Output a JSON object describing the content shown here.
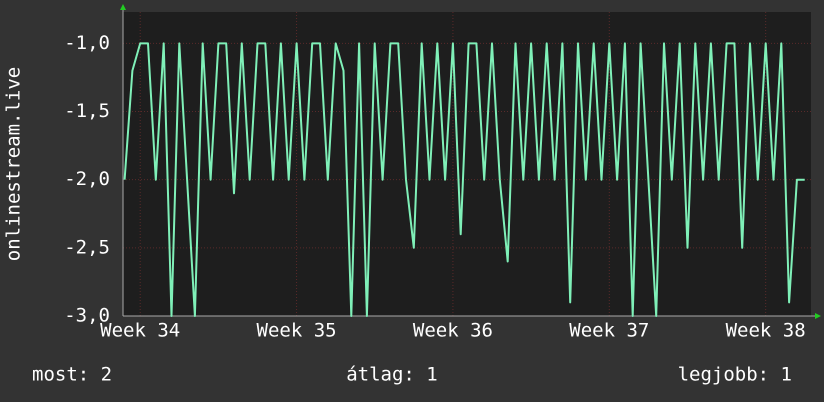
{
  "chart_data": {
    "type": "line",
    "ylabel": "onlinestream.live",
    "x": [
      33.9,
      33.95,
      34,
      34.05,
      34.1,
      34.15,
      34.2,
      34.25,
      34.3,
      34.35,
      34.4,
      34.45,
      34.5,
      34.55,
      34.6,
      34.65,
      34.7,
      34.75,
      34.8,
      34.85,
      34.9,
      34.95,
      35,
      35.05,
      35.1,
      35.15,
      35.2,
      35.25,
      35.3,
      35.35,
      35.4,
      35.45,
      35.5,
      35.55,
      35.6,
      35.65,
      35.7,
      35.75,
      35.8,
      35.85,
      35.9,
      35.95,
      36,
      36.05,
      36.1,
      36.15,
      36.2,
      36.25,
      36.3,
      36.35,
      36.4,
      36.45,
      36.5,
      36.55,
      36.6,
      36.65,
      36.7,
      36.75,
      36.8,
      36.85,
      36.9,
      36.95,
      37,
      37.05,
      37.1,
      37.15,
      37.2,
      37.25,
      37.3,
      37.35,
      37.4,
      37.45,
      37.5,
      37.55,
      37.6,
      37.65,
      37.7,
      37.75,
      37.8,
      37.85,
      37.9,
      37.95,
      38,
      38.05,
      38.1,
      38.15,
      38.2,
      38.25
    ],
    "series": [
      {
        "color": "#7ff0b8",
        "values": [
          -2.0,
          -1.2,
          -1.0,
          -1.0,
          -2.0,
          -1.0,
          -3.0,
          -1.0,
          -2.0,
          -3.0,
          -1.0,
          -2.0,
          -1.0,
          -1.0,
          -2.1,
          -1.0,
          -2.0,
          -1.0,
          -1.0,
          -2.0,
          -1.0,
          -2.0,
          -1.0,
          -2.0,
          -1.0,
          -1.0,
          -2.0,
          -1.0,
          -1.2,
          -3.0,
          -1.0,
          -3.0,
          -1.0,
          -2.0,
          -1.0,
          -1.0,
          -2.0,
          -2.5,
          -1.0,
          -2.0,
          -1.0,
          -2.0,
          -1.0,
          -2.4,
          -1.0,
          -1.0,
          -2.0,
          -1.0,
          -2.0,
          -2.6,
          -1.0,
          -2.0,
          -1.0,
          -2.0,
          -1.0,
          -2.0,
          -1.0,
          -2.9,
          -1.0,
          -2.0,
          -1.0,
          -2.0,
          -1.0,
          -2.0,
          -1.0,
          -3.0,
          -1.0,
          -2.0,
          -3.0,
          -1.0,
          -2.0,
          -1.0,
          -2.5,
          -1.0,
          -2.0,
          -1.0,
          -2.0,
          -1.0,
          -1.0,
          -2.5,
          -1.0,
          -2.0,
          -1.0,
          -2.0,
          -1.0,
          -2.9,
          -2.0,
          -2.0
        ]
      }
    ],
    "xlim": [
      33.89,
      38.29
    ],
    "xticks": [
      {
        "value": 34,
        "label": "Week 34"
      },
      {
        "value": 35,
        "label": "Week 35"
      },
      {
        "value": 36,
        "label": "Week 36"
      },
      {
        "value": 37,
        "label": "Week 37"
      },
      {
        "value": 38,
        "label": "Week 38"
      }
    ],
    "ylim": [
      -3,
      -0.77
    ],
    "yticks": [
      {
        "value": -3,
        "label": "-3,0"
      },
      {
        "value": -2.5,
        "label": "-2,5"
      },
      {
        "value": -2,
        "label": "-2,0"
      },
      {
        "value": -1.5,
        "label": "-1,5"
      },
      {
        "value": -1,
        "label": "-1,0"
      }
    ],
    "grid": true,
    "footer": [
      "most: 2",
      "átlag: 1",
      "legjobb: 1"
    ]
  }
}
